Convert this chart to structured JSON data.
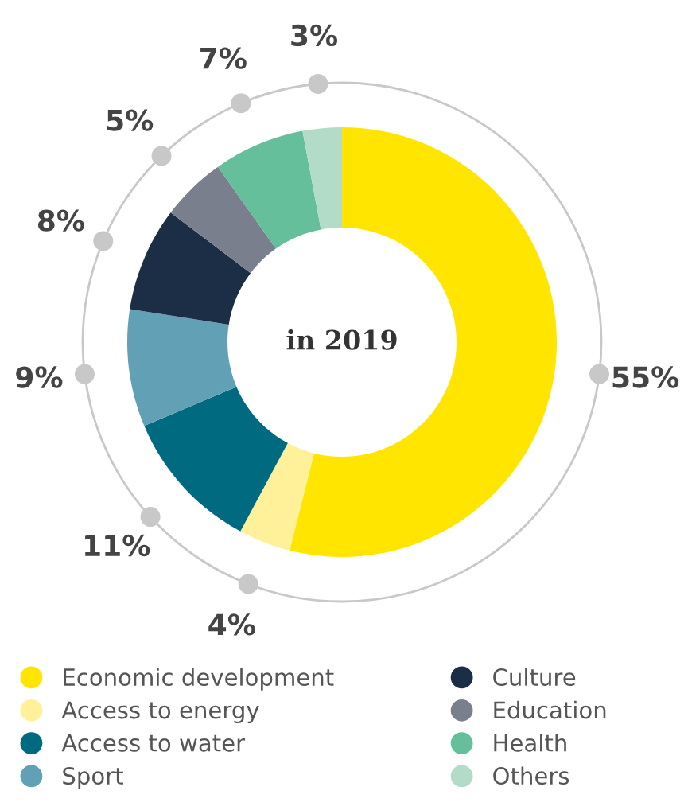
{
  "chart_data": {
    "type": "donut",
    "categories": [
      "Economic development",
      "Access to energy",
      "Access to water",
      "Sport",
      "Culture",
      "Education",
      "Health",
      "Others"
    ],
    "values": [
      55,
      4,
      11,
      9,
      8,
      5,
      7,
      3
    ],
    "value_labels": [
      "55%",
      "4%",
      "11%",
      "9%",
      "8%",
      "5%",
      "7%",
      "3%"
    ],
    "colors": [
      "#ffe500",
      "#fff09a",
      "#006b80",
      "#62a0b5",
      "#1c2e45",
      "#7a7f8e",
      "#66bf9b",
      "#b3dcc8"
    ],
    "annotations": [
      "in 2019"
    ],
    "legend": "bottom"
  }
}
